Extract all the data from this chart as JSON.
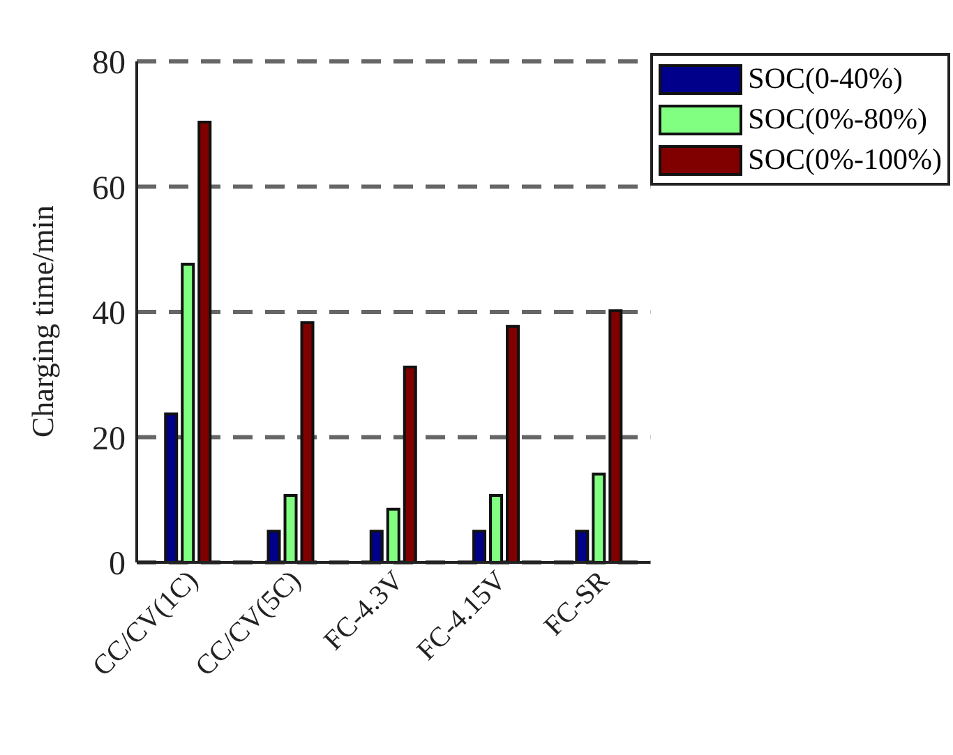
{
  "chart_data": {
    "type": "bar",
    "ylabel": "Charging time/min",
    "categories": [
      "CC/CV(1C)",
      "CC/CV(5C)",
      "FC-4.3V",
      "FC-4.15V",
      "FC-SR"
    ],
    "series": [
      {
        "name": "SOC(0-40%)",
        "color": "#00008b",
        "values": [
          23.7,
          5.0,
          5.0,
          5.0,
          5.0
        ]
      },
      {
        "name": "SOC(0%-80%)",
        "color": "#80ff80",
        "values": [
          47.6,
          10.7,
          8.5,
          10.7,
          14.1
        ]
      },
      {
        "name": "SOC(0%-100%)",
        "color": "#800000",
        "values": [
          70.3,
          38.3,
          31.2,
          37.7,
          40.2
        ]
      }
    ],
    "ylim": [
      0,
      80
    ],
    "yticks": [
      0,
      20,
      40,
      60,
      80
    ],
    "grid": "y",
    "legend": "top right"
  }
}
